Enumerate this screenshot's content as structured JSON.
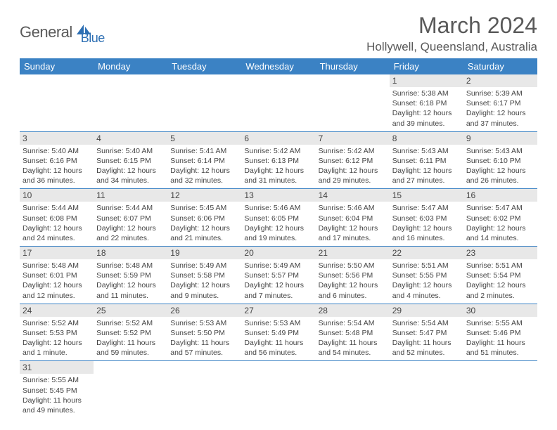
{
  "logo": {
    "text1": "General",
    "text2": "Blue"
  },
  "title": "March 2024",
  "location": "Hollywell, Queensland, Australia",
  "colors": {
    "header_bg": "#3b82c4",
    "header_text": "#ffffff",
    "daynum_bg": "#e8e8e8",
    "border": "#3b82c4",
    "text": "#444444",
    "title_text": "#595959"
  },
  "weekdays": [
    "Sunday",
    "Monday",
    "Tuesday",
    "Wednesday",
    "Thursday",
    "Friday",
    "Saturday"
  ],
  "weeks": [
    [
      null,
      null,
      null,
      null,
      null,
      {
        "n": "1",
        "sr": "Sunrise: 5:38 AM",
        "ss": "Sunset: 6:18 PM",
        "dl1": "Daylight: 12 hours",
        "dl2": "and 39 minutes."
      },
      {
        "n": "2",
        "sr": "Sunrise: 5:39 AM",
        "ss": "Sunset: 6:17 PM",
        "dl1": "Daylight: 12 hours",
        "dl2": "and 37 minutes."
      }
    ],
    [
      {
        "n": "3",
        "sr": "Sunrise: 5:40 AM",
        "ss": "Sunset: 6:16 PM",
        "dl1": "Daylight: 12 hours",
        "dl2": "and 36 minutes."
      },
      {
        "n": "4",
        "sr": "Sunrise: 5:40 AM",
        "ss": "Sunset: 6:15 PM",
        "dl1": "Daylight: 12 hours",
        "dl2": "and 34 minutes."
      },
      {
        "n": "5",
        "sr": "Sunrise: 5:41 AM",
        "ss": "Sunset: 6:14 PM",
        "dl1": "Daylight: 12 hours",
        "dl2": "and 32 minutes."
      },
      {
        "n": "6",
        "sr": "Sunrise: 5:42 AM",
        "ss": "Sunset: 6:13 PM",
        "dl1": "Daylight: 12 hours",
        "dl2": "and 31 minutes."
      },
      {
        "n": "7",
        "sr": "Sunrise: 5:42 AM",
        "ss": "Sunset: 6:12 PM",
        "dl1": "Daylight: 12 hours",
        "dl2": "and 29 minutes."
      },
      {
        "n": "8",
        "sr": "Sunrise: 5:43 AM",
        "ss": "Sunset: 6:11 PM",
        "dl1": "Daylight: 12 hours",
        "dl2": "and 27 minutes."
      },
      {
        "n": "9",
        "sr": "Sunrise: 5:43 AM",
        "ss": "Sunset: 6:10 PM",
        "dl1": "Daylight: 12 hours",
        "dl2": "and 26 minutes."
      }
    ],
    [
      {
        "n": "10",
        "sr": "Sunrise: 5:44 AM",
        "ss": "Sunset: 6:08 PM",
        "dl1": "Daylight: 12 hours",
        "dl2": "and 24 minutes."
      },
      {
        "n": "11",
        "sr": "Sunrise: 5:44 AM",
        "ss": "Sunset: 6:07 PM",
        "dl1": "Daylight: 12 hours",
        "dl2": "and 22 minutes."
      },
      {
        "n": "12",
        "sr": "Sunrise: 5:45 AM",
        "ss": "Sunset: 6:06 PM",
        "dl1": "Daylight: 12 hours",
        "dl2": "and 21 minutes."
      },
      {
        "n": "13",
        "sr": "Sunrise: 5:46 AM",
        "ss": "Sunset: 6:05 PM",
        "dl1": "Daylight: 12 hours",
        "dl2": "and 19 minutes."
      },
      {
        "n": "14",
        "sr": "Sunrise: 5:46 AM",
        "ss": "Sunset: 6:04 PM",
        "dl1": "Daylight: 12 hours",
        "dl2": "and 17 minutes."
      },
      {
        "n": "15",
        "sr": "Sunrise: 5:47 AM",
        "ss": "Sunset: 6:03 PM",
        "dl1": "Daylight: 12 hours",
        "dl2": "and 16 minutes."
      },
      {
        "n": "16",
        "sr": "Sunrise: 5:47 AM",
        "ss": "Sunset: 6:02 PM",
        "dl1": "Daylight: 12 hours",
        "dl2": "and 14 minutes."
      }
    ],
    [
      {
        "n": "17",
        "sr": "Sunrise: 5:48 AM",
        "ss": "Sunset: 6:01 PM",
        "dl1": "Daylight: 12 hours",
        "dl2": "and 12 minutes."
      },
      {
        "n": "18",
        "sr": "Sunrise: 5:48 AM",
        "ss": "Sunset: 5:59 PM",
        "dl1": "Daylight: 12 hours",
        "dl2": "and 11 minutes."
      },
      {
        "n": "19",
        "sr": "Sunrise: 5:49 AM",
        "ss": "Sunset: 5:58 PM",
        "dl1": "Daylight: 12 hours",
        "dl2": "and 9 minutes."
      },
      {
        "n": "20",
        "sr": "Sunrise: 5:49 AM",
        "ss": "Sunset: 5:57 PM",
        "dl1": "Daylight: 12 hours",
        "dl2": "and 7 minutes."
      },
      {
        "n": "21",
        "sr": "Sunrise: 5:50 AM",
        "ss": "Sunset: 5:56 PM",
        "dl1": "Daylight: 12 hours",
        "dl2": "and 6 minutes."
      },
      {
        "n": "22",
        "sr": "Sunrise: 5:51 AM",
        "ss": "Sunset: 5:55 PM",
        "dl1": "Daylight: 12 hours",
        "dl2": "and 4 minutes."
      },
      {
        "n": "23",
        "sr": "Sunrise: 5:51 AM",
        "ss": "Sunset: 5:54 PM",
        "dl1": "Daylight: 12 hours",
        "dl2": "and 2 minutes."
      }
    ],
    [
      {
        "n": "24",
        "sr": "Sunrise: 5:52 AM",
        "ss": "Sunset: 5:53 PM",
        "dl1": "Daylight: 12 hours",
        "dl2": "and 1 minute."
      },
      {
        "n": "25",
        "sr": "Sunrise: 5:52 AM",
        "ss": "Sunset: 5:52 PM",
        "dl1": "Daylight: 11 hours",
        "dl2": "and 59 minutes."
      },
      {
        "n": "26",
        "sr": "Sunrise: 5:53 AM",
        "ss": "Sunset: 5:50 PM",
        "dl1": "Daylight: 11 hours",
        "dl2": "and 57 minutes."
      },
      {
        "n": "27",
        "sr": "Sunrise: 5:53 AM",
        "ss": "Sunset: 5:49 PM",
        "dl1": "Daylight: 11 hours",
        "dl2": "and 56 minutes."
      },
      {
        "n": "28",
        "sr": "Sunrise: 5:54 AM",
        "ss": "Sunset: 5:48 PM",
        "dl1": "Daylight: 11 hours",
        "dl2": "and 54 minutes."
      },
      {
        "n": "29",
        "sr": "Sunrise: 5:54 AM",
        "ss": "Sunset: 5:47 PM",
        "dl1": "Daylight: 11 hours",
        "dl2": "and 52 minutes."
      },
      {
        "n": "30",
        "sr": "Sunrise: 5:55 AM",
        "ss": "Sunset: 5:46 PM",
        "dl1": "Daylight: 11 hours",
        "dl2": "and 51 minutes."
      }
    ],
    [
      {
        "n": "31",
        "sr": "Sunrise: 5:55 AM",
        "ss": "Sunset: 5:45 PM",
        "dl1": "Daylight: 11 hours",
        "dl2": "and 49 minutes."
      },
      null,
      null,
      null,
      null,
      null,
      null
    ]
  ]
}
